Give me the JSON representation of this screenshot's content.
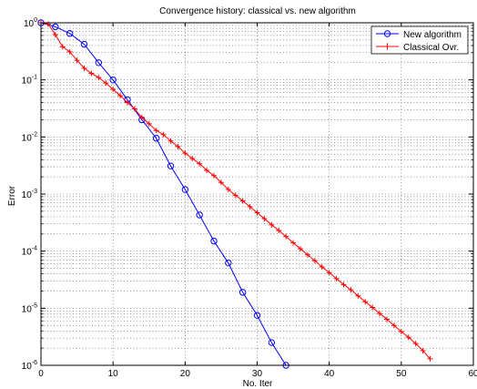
{
  "chart_data": {
    "type": "line",
    "title": "Convergence history: classical vs. new algorithm",
    "xlabel": "No. Iter",
    "ylabel": "Error",
    "xlim": [
      0,
      60
    ],
    "ylim": [
      1e-06,
      1
    ],
    "yscale": "log",
    "grid": true,
    "legend_position": "top-right",
    "x_ticks": [
      "0",
      "10",
      "20",
      "30",
      "40",
      "50",
      "60"
    ],
    "y_ticks": [
      {
        "base": "10",
        "exp": "0"
      },
      {
        "base": "10",
        "exp": "-1"
      },
      {
        "base": "10",
        "exp": "-2"
      },
      {
        "base": "10",
        "exp": "-3"
      },
      {
        "base": "10",
        "exp": "-4"
      },
      {
        "base": "10",
        "exp": "-5"
      },
      {
        "base": "10",
        "exp": "-6"
      }
    ],
    "series": [
      {
        "name": "New algorithm",
        "color": "#0000ff",
        "marker": "circle",
        "x": [
          0,
          2,
          4,
          6,
          8,
          10,
          12,
          14,
          16,
          18,
          20,
          22,
          24,
          26,
          28,
          30,
          32,
          34
        ],
        "y": [
          1.0,
          0.85,
          0.65,
          0.42,
          0.2,
          0.1,
          0.045,
          0.02,
          0.0095,
          0.0031,
          0.0012,
          0.00043,
          0.00015,
          6.2e-05,
          1.9e-05,
          7.5e-06,
          2.5e-06,
          1e-06
        ]
      },
      {
        "name": "Classical Ovr.",
        "color": "#ff0000",
        "marker": "plus",
        "x": [
          0,
          1,
          2,
          3,
          4,
          5,
          6,
          7,
          8,
          9,
          10,
          11,
          12,
          13,
          14,
          15,
          16,
          17,
          18,
          19,
          20,
          21,
          22,
          23,
          24,
          25,
          26,
          27,
          28,
          29,
          30,
          31,
          32,
          33,
          34,
          35,
          36,
          37,
          38,
          39,
          40,
          41,
          42,
          43,
          44,
          45,
          46,
          47,
          48,
          49,
          50,
          51,
          52,
          53,
          54
        ],
        "y": [
          1.0,
          0.95,
          0.62,
          0.38,
          0.31,
          0.22,
          0.16,
          0.13,
          0.11,
          0.088,
          0.068,
          0.053,
          0.04,
          0.031,
          0.022,
          0.017,
          0.013,
          0.011,
          0.0085,
          0.0068,
          0.0052,
          0.0042,
          0.0034,
          0.0026,
          0.0021,
          0.0016,
          0.0012,
          0.00095,
          0.00076,
          0.0006,
          0.00047,
          0.00037,
          0.00029,
          0.00023,
          0.00018,
          0.00014,
          0.00011,
          8.6e-05,
          6.8e-05,
          5.3e-05,
          4.2e-05,
          3.3e-05,
          2.6e-05,
          2.1e-05,
          1.65e-05,
          1.3e-05,
          1.03e-05,
          8.1e-06,
          6.4e-06,
          5e-06,
          3.9e-06,
          3.1e-06,
          2.4e-06,
          1.8e-06,
          1.3e-06
        ]
      }
    ]
  }
}
